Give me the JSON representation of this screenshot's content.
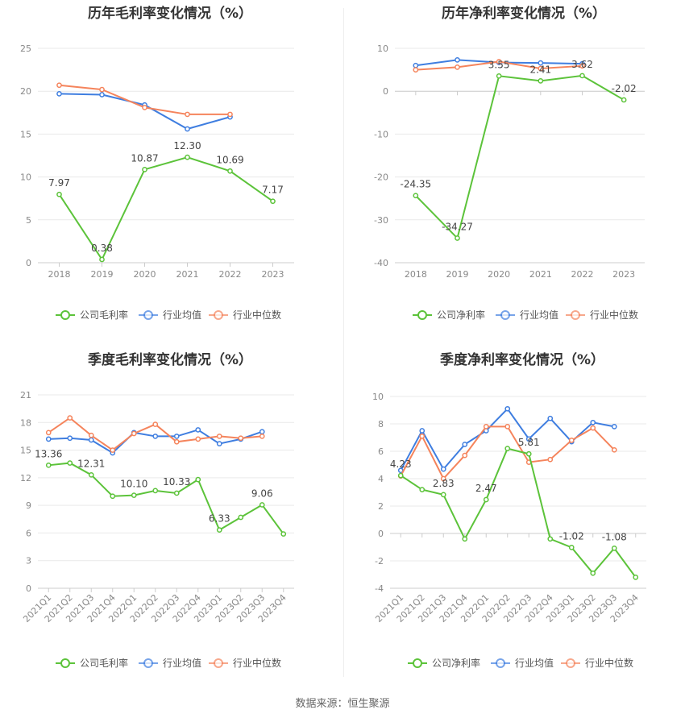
{
  "charts": [
    {
      "type": "line",
      "title": "历年毛利率变化情况（%）",
      "categories": [
        "2018",
        "2019",
        "2020",
        "2021",
        "2022",
        "2023"
      ],
      "ylim": [
        0,
        25
      ],
      "yticks": [
        0,
        5,
        10,
        15,
        20,
        25
      ],
      "series": [
        {
          "name": "公司毛利率",
          "color": "#5cc33a",
          "values": [
            7.97,
            0.38,
            10.87,
            12.3,
            10.69,
            7.17
          ],
          "labels": [
            "7.97",
            "0.38",
            "10.87",
            "12.30",
            "10.69",
            "7.17"
          ]
        },
        {
          "name": "行业均值",
          "color": "#3f7ee0",
          "values": [
            19.7,
            19.6,
            18.4,
            15.6,
            17.0,
            null
          ]
        },
        {
          "name": "行业中位数",
          "color": "#f5845c",
          "values": [
            20.7,
            20.2,
            18.1,
            17.3,
            17.3,
            null
          ]
        }
      ],
      "rotate_x": false
    },
    {
      "type": "line",
      "title": "历年净利率变化情况（%）",
      "categories": [
        "2018",
        "2019",
        "2020",
        "2021",
        "2022",
        "2023"
      ],
      "ylim": [
        -40,
        10
      ],
      "yticks": [
        -40,
        -30,
        -20,
        -10,
        0,
        10
      ],
      "series": [
        {
          "name": "公司净利率",
          "color": "#5cc33a",
          "values": [
            -24.35,
            -34.27,
            3.55,
            2.41,
            3.62,
            -2.02
          ],
          "labels": [
            "-24.35",
            "-34.27",
            "3.55",
            "2.41",
            "3.62",
            "-2.02"
          ]
        },
        {
          "name": "行业均值",
          "color": "#3f7ee0",
          "values": [
            6.0,
            7.3,
            6.7,
            6.6,
            6.4,
            null
          ]
        },
        {
          "name": "行业中位数",
          "color": "#f5845c",
          "values": [
            5.0,
            5.6,
            6.9,
            5.3,
            5.9,
            null
          ]
        }
      ],
      "rotate_x": false
    },
    {
      "type": "line",
      "title": "季度毛利率变化情况（%）",
      "categories": [
        "2021Q1",
        "2021Q2",
        "2021Q3",
        "2021Q4",
        "2022Q1",
        "2022Q2",
        "2022Q3",
        "2022Q4",
        "2023Q1",
        "2023Q2",
        "2023Q3",
        "2023Q4"
      ],
      "ylim": [
        0,
        21
      ],
      "yticks": [
        0,
        3,
        6,
        9,
        12,
        15,
        18,
        21
      ],
      "series": [
        {
          "name": "公司毛利率",
          "color": "#5cc33a",
          "values": [
            13.36,
            13.6,
            12.31,
            10.0,
            10.1,
            10.6,
            10.33,
            11.8,
            6.33,
            7.7,
            9.06,
            5.9
          ],
          "labels": [
            "13.36",
            "",
            "12.31",
            "",
            "10.10",
            "",
            "10.33",
            "",
            "6.33",
            "",
            "9.06",
            ""
          ]
        },
        {
          "name": "行业均值",
          "color": "#3f7ee0",
          "values": [
            16.2,
            16.3,
            16.1,
            14.7,
            16.9,
            16.5,
            16.5,
            17.2,
            15.7,
            16.2,
            17.0,
            null
          ]
        },
        {
          "name": "行业中位数",
          "color": "#f5845c",
          "values": [
            16.9,
            18.5,
            16.6,
            15.0,
            16.8,
            17.8,
            15.9,
            16.2,
            16.5,
            16.3,
            16.5,
            null
          ]
        }
      ],
      "rotate_x": true
    },
    {
      "type": "line",
      "title": "季度净利率变化情况（%）",
      "categories": [
        "2021Q1",
        "2021Q2",
        "2021Q3",
        "2021Q4",
        "2022Q1",
        "2022Q2",
        "2022Q3",
        "2022Q4",
        "2023Q1",
        "2023Q2",
        "2023Q3",
        "2023Q4"
      ],
      "ylim": [
        -4,
        10
      ],
      "yticks": [
        -4,
        -2,
        0,
        2,
        4,
        6,
        8,
        10
      ],
      "series": [
        {
          "name": "公司净利率",
          "color": "#5cc33a",
          "values": [
            4.23,
            3.2,
            2.83,
            -0.4,
            2.47,
            6.2,
            5.81,
            -0.4,
            -1.02,
            -2.9,
            -1.08,
            -3.2
          ],
          "labels": [
            "4.23",
            "",
            "2.83",
            "",
            "2.47",
            "",
            "5.81",
            "",
            "-1.02",
            "",
            "-1.08",
            ""
          ]
        },
        {
          "name": "行业均值",
          "color": "#3f7ee0",
          "values": [
            4.6,
            7.5,
            4.7,
            6.5,
            7.5,
            9.1,
            6.9,
            8.4,
            6.7,
            8.1,
            7.8,
            null
          ]
        },
        {
          "name": "行业中位数",
          "color": "#f5845c",
          "values": [
            4.2,
            7.1,
            4.0,
            5.7,
            7.8,
            7.8,
            5.2,
            5.4,
            6.8,
            7.7,
            6.1,
            null
          ]
        }
      ],
      "rotate_x": true
    }
  ],
  "source": "数据来源：恒生聚源"
}
